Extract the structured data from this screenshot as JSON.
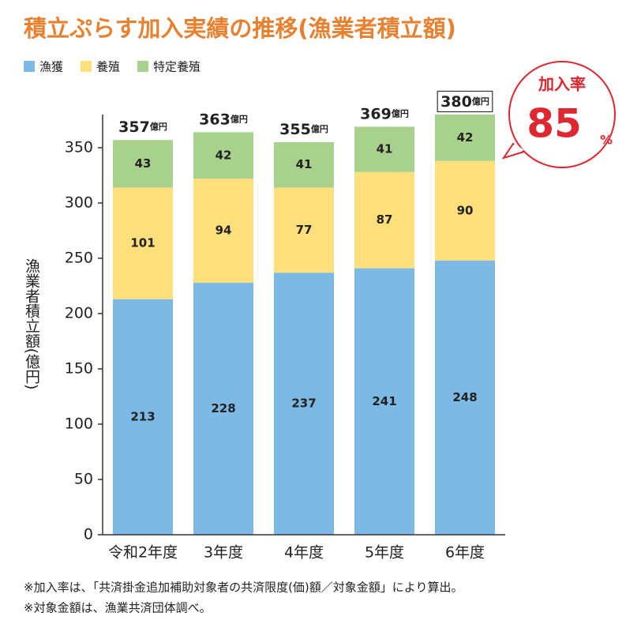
{
  "chart_data": {
    "type": "stacked_bar",
    "title": "積立ぷらす加入実績の推移(漁業者積立額)",
    "y_label": "漁業者積立額(億円)",
    "categories": [
      "令和2年度",
      "3年度",
      "4年度",
      "5年度",
      "6年度"
    ],
    "series": [
      {
        "name": "漁獲",
        "color": "#7cb9e5",
        "values": [
          213,
          228,
          237,
          241,
          248
        ]
      },
      {
        "name": "養殖",
        "color": "#fddf7c",
        "values": [
          101,
          94,
          77,
          87,
          90
        ]
      },
      {
        "name": "特定養殖",
        "color": "#a9d18e",
        "values": [
          43,
          42,
          41,
          41,
          42
        ]
      }
    ],
    "totals": [
      357,
      363,
      355,
      369,
      380
    ],
    "totals_unit": "億円",
    "ylim": [
      0,
      380
    ],
    "yticks": [
      0,
      50,
      100,
      150,
      200,
      250,
      300,
      350
    ],
    "annotation": {
      "title": "加入率",
      "value": 85,
      "unit": "%"
    },
    "notes": [
      "※加入率は、「共済掛金追加補助対象者の共済限度(価)額／対象金額」により算出。",
      "※対象金額は、漁業共済団体調べ。"
    ]
  }
}
